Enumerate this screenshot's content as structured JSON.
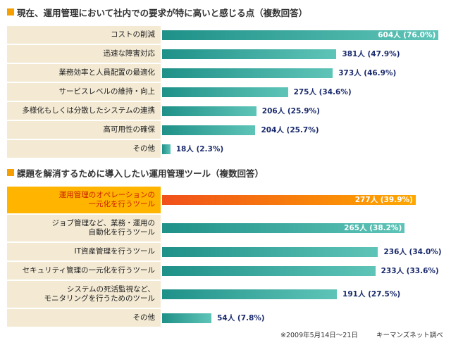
{
  "chart_data": [
    {
      "type": "bar",
      "orientation": "horizontal",
      "title": "現在、運用管理において社内での要求が特に高いと感じる点（複数回答）",
      "categories": [
        "コストの削減",
        "迅速な障害対応",
        "業務効率と人員配置の最適化",
        "サービスレベルの維持・向上",
        "多様化もしくは分散したシステムの連携",
        "高可用性の確保",
        "その他"
      ],
      "values": [
        604,
        381,
        373,
        275,
        206,
        204,
        18
      ],
      "value_labels": [
        "604人 (76.0%)",
        "381人 (47.9%)",
        "373人 (46.9%)",
        "275人 (34.6%)",
        "206人 (25.9%)",
        "204人 (25.7%)",
        "18人 (2.3%)"
      ],
      "color": "#1f9188",
      "xlim": [
        0,
        616
      ]
    },
    {
      "type": "bar",
      "orientation": "horizontal",
      "title": "課題を解消するために導入したい運用管理ツール（複数回答）",
      "categories": [
        "運用管理のオペレーションの\n一元化を行うツール",
        "ジョブ管理など、業務・運用の\n自動化を行うツール",
        "IT資産管理を行うツール",
        "セキュリティ管理の一元化を行うツール",
        "システムの死活監視など、\nモニタリングを行うためのツール",
        "その他"
      ],
      "values": [
        277,
        265,
        236,
        233,
        191,
        54
      ],
      "value_labels": [
        "277人 (39.9%)",
        "265人 (38.2%)",
        "236人 (34.0%)",
        "233人 (33.6%)",
        "191人 (27.5%)",
        "54人 (7.8%)"
      ],
      "color": "#1f9188",
      "highlight": 0,
      "highlight_color": "#f0501a",
      "xlim": [
        0,
        308
      ]
    }
  ],
  "footnote": {
    "period": "※2009年5月14日～21日",
    "source": "キーマンズネット調べ"
  }
}
